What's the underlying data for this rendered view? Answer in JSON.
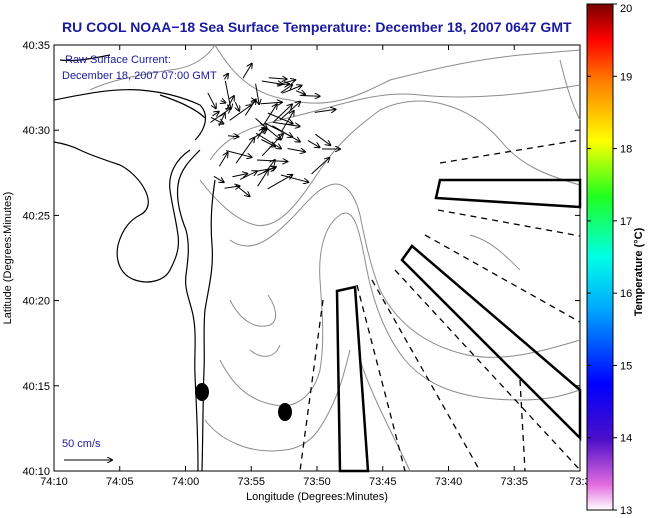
{
  "title": "RU COOL  NOAA−18  Sea Surface Temperature:  December 18, 2007 0647 GMT",
  "current_label": "Raw Surface Current:",
  "current_time": "December 18, 2007 07:00 GMT",
  "scale_label": "50 cm/s",
  "xlabel": "Longitude (Degrees:Minutes)",
  "ylabel": "Latitude (Degrees:Minutes)",
  "x_ticks": [
    "74:10",
    "74:05",
    "74:00",
    "73:55",
    "73:50",
    "73:45",
    "73:40",
    "73:35",
    "73:3"
  ],
  "y_ticks": [
    "40:35",
    "40:30",
    "40:25",
    "40:20",
    "40:15",
    "40:10"
  ],
  "colorbar": {
    "label": "Temperature (°C)",
    "ticks": [
      "20",
      "19",
      "18",
      "17",
      "16",
      "15",
      "14",
      "13"
    ],
    "range": [
      13,
      20
    ]
  },
  "map": {
    "lon_range_deg": [
      -74.1667,
      -73.5
    ],
    "lat_range_deg": [
      40.1667,
      40.5833
    ],
    "current_vectors_count": 60
  }
}
